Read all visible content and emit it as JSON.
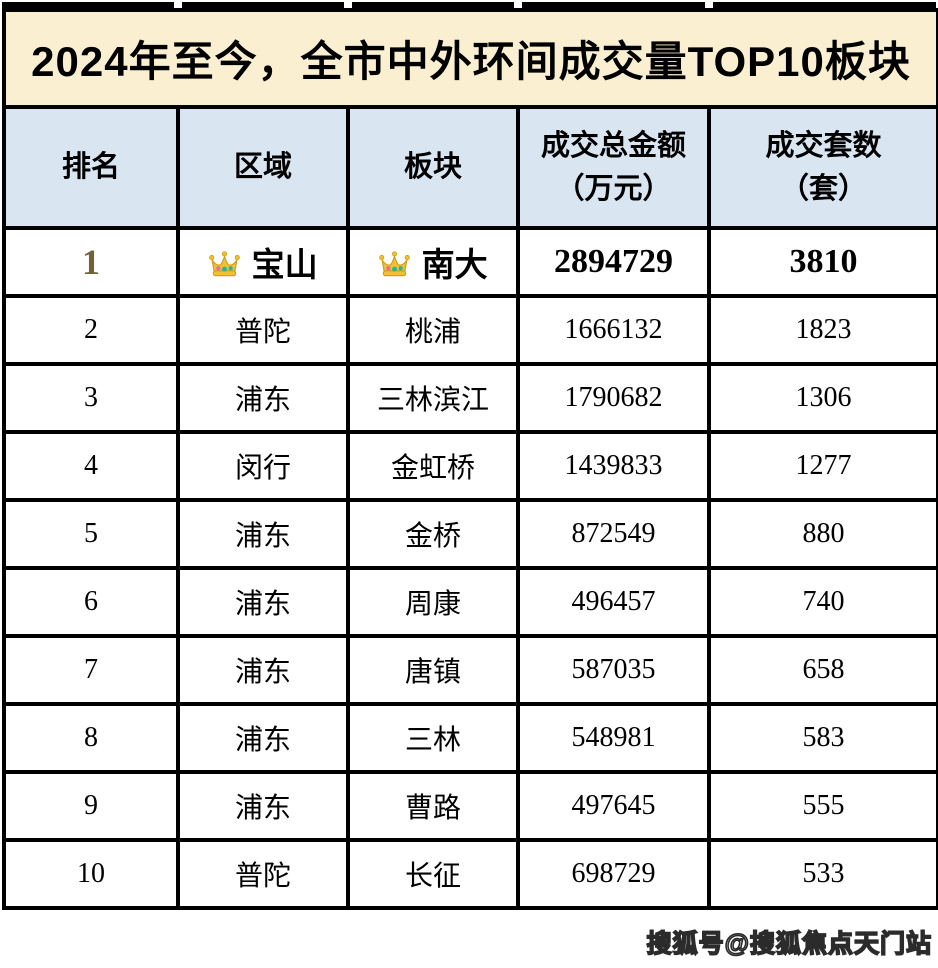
{
  "title": {
    "text": "2024年至今，全市中外环间成交量TOP10板块",
    "bg": "#faf0d1"
  },
  "table": {
    "header_bg": "#d9e6f2",
    "columns": [
      {
        "label": "排名",
        "sub": ""
      },
      {
        "label": "区域",
        "sub": ""
      },
      {
        "label": "板块",
        "sub": ""
      },
      {
        "label": "成交总金额",
        "sub": "（万元）"
      },
      {
        "label": "成交套数",
        "sub": "（套）"
      }
    ],
    "rows": [
      {
        "rank": "1",
        "district": "宝山",
        "sector": "南大",
        "amount": "2894729",
        "units": "3810",
        "crown": true,
        "highlight": true
      },
      {
        "rank": "2",
        "district": "普陀",
        "sector": "桃浦",
        "amount": "1666132",
        "units": "1823",
        "crown": false,
        "highlight": false
      },
      {
        "rank": "3",
        "district": "浦东",
        "sector": "三林滨江",
        "amount": "1790682",
        "units": "1306",
        "crown": false,
        "highlight": false
      },
      {
        "rank": "4",
        "district": "闵行",
        "sector": "金虹桥",
        "amount": "1439833",
        "units": "1277",
        "crown": false,
        "highlight": false
      },
      {
        "rank": "5",
        "district": "浦东",
        "sector": "金桥",
        "amount": "872549",
        "units": "880",
        "crown": false,
        "highlight": false
      },
      {
        "rank": "6",
        "district": "浦东",
        "sector": "周康",
        "amount": "496457",
        "units": "740",
        "crown": false,
        "highlight": false
      },
      {
        "rank": "7",
        "district": "浦东",
        "sector": "唐镇",
        "amount": "587035",
        "units": "658",
        "crown": false,
        "highlight": false
      },
      {
        "rank": "8",
        "district": "浦东",
        "sector": "三林",
        "amount": "548981",
        "units": "583",
        "crown": false,
        "highlight": false
      },
      {
        "rank": "9",
        "district": "浦东",
        "sector": "曹路",
        "amount": "497645",
        "units": "555",
        "crown": false,
        "highlight": false
      },
      {
        "rank": "10",
        "district": "普陀",
        "sector": "长征",
        "amount": "698729",
        "units": "533",
        "crown": false,
        "highlight": false
      }
    ]
  },
  "watermark": {
    "text": "搜狐号@搜狐焦点天门站"
  },
  "icons": {
    "crown": "crown-icon"
  },
  "colors": {
    "border": "#000000",
    "title_bg": "#faf0d1",
    "header_bg": "#d9e6f2",
    "rank1_text": "#6f6238",
    "crown_gold": "#f0c233",
    "crown_outline": "#d39c12",
    "crown_gem_pink": "#e868ab",
    "crown_gem_teal": "#2ab59b"
  },
  "chart_data": {
    "type": "table",
    "title": "2024年至今，全市中外环间成交量TOP10板块",
    "columns": [
      "排名",
      "区域",
      "板块",
      "成交总金额（万元）",
      "成交套数（套）"
    ],
    "rows": [
      [
        1,
        "宝山",
        "南大",
        2894729,
        3810
      ],
      [
        2,
        "普陀",
        "桃浦",
        1666132,
        1823
      ],
      [
        3,
        "浦东",
        "三林滨江",
        1790682,
        1306
      ],
      [
        4,
        "闵行",
        "金虹桥",
        1439833,
        1277
      ],
      [
        5,
        "浦东",
        "金桥",
        872549,
        880
      ],
      [
        6,
        "浦东",
        "周康",
        496457,
        740
      ],
      [
        7,
        "浦东",
        "唐镇",
        587035,
        658
      ],
      [
        8,
        "浦东",
        "三林",
        548981,
        583
      ],
      [
        9,
        "浦东",
        "曹路",
        497645,
        555
      ],
      [
        10,
        "普陀",
        "长征",
        698729,
        533
      ]
    ],
    "notes": "第1名行加粗并带皇冠标记"
  }
}
